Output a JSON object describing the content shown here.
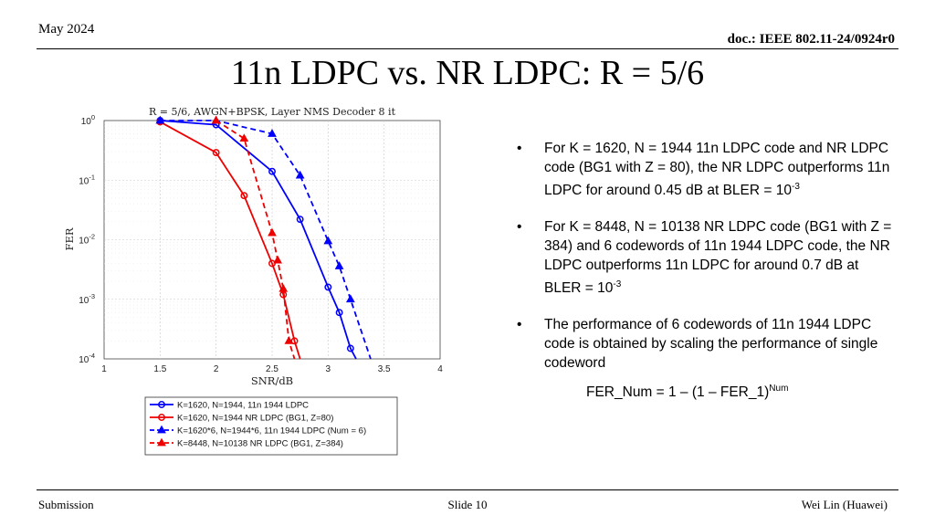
{
  "header": {
    "date": "May 2024",
    "doc": "doc.: IEEE 802.11-24/0924r0"
  },
  "title": "11n LDPC vs. NR LDPC: R = 5/6",
  "bullets": [
    {
      "pre": "For K = 1620, N = 1944 11n LDPC code and NR LDPC code (BG1 with Z = 80), the NR LDPC outperforms 11n LDPC for around 0.45 dB at BLER = 10",
      "sup": "-3"
    },
    {
      "pre": "For K = 8448, N = 10138 NR LDPC code (BG1 with Z = 384) and 6 codewords of 11n 1944 LDPC code, the NR LDPC outperforms 11n LDPC for around 0.7 dB at BLER = 10",
      "sup": "-3"
    },
    {
      "pre": "The performance of 6 codewords of 11n 1944 LDPC code is obtained by scaling the performance of single codeword",
      "sup": ""
    }
  ],
  "formula": {
    "text": "FER_Num = 1 – (1 – FER_1)",
    "sup": "Num"
  },
  "footer": {
    "left": "Submission",
    "center": "Slide 10",
    "right": "Wei Lin (Huawei)"
  },
  "chart_data": {
    "type": "line",
    "title": "R = 5/6, AWGN+BPSK, Layer NMS Decoder 8 it",
    "xlabel": "SNR/dB",
    "ylabel": "FER",
    "xlim": [
      1,
      4
    ],
    "ylim": [
      0.0001,
      1
    ],
    "yscale": "log",
    "grid": true,
    "legend_position": "below",
    "x_ticks": [
      1,
      1.5,
      2,
      2.5,
      3,
      3.5,
      4
    ],
    "x_tick_labels": [
      "1",
      "1.5",
      "2",
      "2.5",
      "3",
      "3.5",
      "4"
    ],
    "y_tick_exponents": [
      "0",
      "-1",
      "-2",
      "-3",
      "-4"
    ],
    "series": [
      {
        "name": "K=1620, N=1944, 11n 1944 LDPC",
        "color": "#0000ff",
        "dash": "solid",
        "marker": "circle",
        "x": [
          1.5,
          2.0,
          2.5,
          2.75,
          3.0,
          3.1,
          3.2,
          3.25
        ],
        "y": [
          1.0,
          0.85,
          0.14,
          0.022,
          0.0016,
          0.0006,
          0.00015,
          0.0001
        ]
      },
      {
        "name": "K=1620, N=1944 NR LDPC (BG1, Z=80)",
        "color": "#ee0000",
        "dash": "solid",
        "marker": "circle",
        "x": [
          1.5,
          2.0,
          2.25,
          2.5,
          2.6,
          2.7,
          2.75
        ],
        "y": [
          0.95,
          0.29,
          0.055,
          0.004,
          0.0012,
          0.0002,
          0.0001
        ]
      },
      {
        "name": "K=1620*6, N=1944*6, 11n 1944 LDPC (Num = 6)",
        "color": "#0000ff",
        "dash": "dashed",
        "marker": "triangle",
        "x": [
          1.5,
          2.0,
          2.5,
          2.75,
          3.0,
          3.1,
          3.2,
          3.38
        ],
        "y": [
          1.0,
          1.0,
          0.6,
          0.12,
          0.0095,
          0.0036,
          0.001,
          0.0001
        ]
      },
      {
        "name": "K=8448, N=10138 NR LDPC (BG1, Z=384)",
        "color": "#ee0000",
        "dash": "dashed",
        "marker": "triangle",
        "x": [
          2.0,
          2.25,
          2.5,
          2.55,
          2.6,
          2.65,
          2.7
        ],
        "y": [
          1.0,
          0.5,
          0.013,
          0.0045,
          0.0015,
          0.0002,
          0.0001
        ]
      }
    ]
  }
}
